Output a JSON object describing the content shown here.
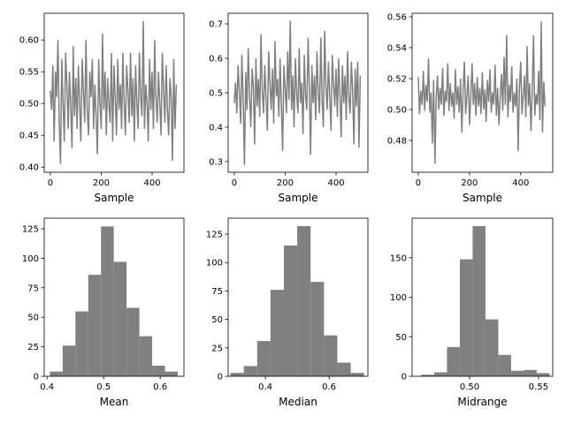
{
  "chart_data": [
    {
      "type": "line",
      "xlabel": "Sample",
      "xlim": [
        -24,
        525
      ],
      "ylim": [
        0.392,
        0.642
      ],
      "xticks": [
        "0",
        "200",
        "400"
      ],
      "xtick_values": [
        0,
        200,
        400
      ],
      "yticks": [
        "0.40",
        "0.45",
        "0.50",
        "0.55",
        "0.60"
      ],
      "ytick_values": [
        0.4,
        0.45,
        0.5,
        0.55,
        0.6
      ],
      "color": "#808080",
      "x_step": 5,
      "values": [
        0.52,
        0.49,
        0.56,
        0.44,
        0.55,
        0.51,
        0.6,
        0.47,
        0.405,
        0.57,
        0.5,
        0.44,
        0.58,
        0.53,
        0.46,
        0.55,
        0.5,
        0.43,
        0.59,
        0.48,
        0.54,
        0.46,
        0.56,
        0.5,
        0.44,
        0.57,
        0.52,
        0.47,
        0.6,
        0.49,
        0.45,
        0.55,
        0.51,
        0.57,
        0.46,
        0.53,
        0.48,
        0.42,
        0.57,
        0.5,
        0.46,
        0.61,
        0.49,
        0.55,
        0.45,
        0.54,
        0.5,
        0.47,
        0.58,
        0.44,
        0.56,
        0.51,
        0.45,
        0.57,
        0.49,
        0.53,
        0.46,
        0.58,
        0.5,
        0.45,
        0.56,
        0.52,
        0.47,
        0.58,
        0.48,
        0.54,
        0.44,
        0.56,
        0.5,
        0.46,
        0.58,
        0.51,
        0.48,
        0.63,
        0.46,
        0.53,
        0.5,
        0.44,
        0.57,
        0.49,
        0.55,
        0.46,
        0.6,
        0.51,
        0.47,
        0.55,
        0.5,
        0.45,
        0.58,
        0.52,
        0.47,
        0.56,
        0.49,
        0.45,
        0.54,
        0.51,
        0.41,
        0.57,
        0.46,
        0.53
      ]
    },
    {
      "type": "line",
      "xlabel": "Sample",
      "xlim": [
        -24,
        525
      ],
      "ylim": [
        0.269,
        0.731
      ],
      "xticks": [
        "0",
        "200",
        "400"
      ],
      "xtick_values": [
        0,
        200,
        400
      ],
      "yticks": [
        "0.3",
        "0.4",
        "0.5",
        "0.6",
        "0.7"
      ],
      "ytick_values": [
        0.3,
        0.4,
        0.5,
        0.6,
        0.7
      ],
      "color": "#808080",
      "x_step": 5,
      "values": [
        0.47,
        0.53,
        0.44,
        0.58,
        0.5,
        0.41,
        0.61,
        0.48,
        0.29,
        0.56,
        0.45,
        0.63,
        0.49,
        0.4,
        0.57,
        0.52,
        0.35,
        0.6,
        0.46,
        0.54,
        0.43,
        0.67,
        0.5,
        0.44,
        0.58,
        0.48,
        0.39,
        0.62,
        0.53,
        0.45,
        0.57,
        0.41,
        0.65,
        0.49,
        0.54,
        0.43,
        0.6,
        0.47,
        0.33,
        0.58,
        0.51,
        0.44,
        0.62,
        0.48,
        0.71,
        0.45,
        0.55,
        0.4,
        0.6,
        0.5,
        0.44,
        0.63,
        0.47,
        0.53,
        0.38,
        0.61,
        0.49,
        0.45,
        0.66,
        0.51,
        0.32,
        0.58,
        0.47,
        0.55,
        0.42,
        0.62,
        0.5,
        0.44,
        0.66,
        0.48,
        0.4,
        0.68,
        0.52,
        0.45,
        0.59,
        0.49,
        0.39,
        0.61,
        0.53,
        0.46,
        0.57,
        0.43,
        0.6,
        0.5,
        0.37,
        0.58,
        0.47,
        0.55,
        0.42,
        0.62,
        0.49,
        0.44,
        0.59,
        0.51,
        0.35,
        0.57,
        0.46,
        0.59,
        0.34,
        0.55
      ]
    },
    {
      "type": "line",
      "xlabel": "Sample",
      "xlim": [
        -24,
        525
      ],
      "ylim": [
        0.4594,
        0.5623
      ],
      "xticks": [
        "0",
        "200",
        "400"
      ],
      "xtick_values": [
        0,
        200,
        400
      ],
      "yticks": [
        "0.48",
        "0.50",
        "0.52",
        "0.54",
        "0.56"
      ],
      "ytick_values": [
        0.48,
        0.5,
        0.52,
        0.54,
        0.56
      ],
      "color": "#808080",
      "x_step": 5,
      "values": [
        0.521,
        0.497,
        0.512,
        0.503,
        0.525,
        0.499,
        0.516,
        0.505,
        0.533,
        0.498,
        0.511,
        0.478,
        0.519,
        0.465,
        0.507,
        0.522,
        0.5,
        0.514,
        0.503,
        0.527,
        0.496,
        0.512,
        0.505,
        0.53,
        0.499,
        0.517,
        0.502,
        0.511,
        0.494,
        0.526,
        0.503,
        0.515,
        0.498,
        0.52,
        0.485,
        0.512,
        0.531,
        0.497,
        0.509,
        0.522,
        0.49,
        0.508,
        0.53,
        0.503,
        0.517,
        0.496,
        0.521,
        0.502,
        0.514,
        0.497,
        0.524,
        0.5,
        0.513,
        0.492,
        0.519,
        0.505,
        0.526,
        0.498,
        0.511,
        0.503,
        0.529,
        0.496,
        0.514,
        0.49,
        0.508,
        0.523,
        0.499,
        0.534,
        0.503,
        0.548,
        0.495,
        0.516,
        0.505,
        0.528,
        0.498,
        0.511,
        0.502,
        0.52,
        0.473,
        0.513,
        0.531,
        0.497,
        0.509,
        0.522,
        0.495,
        0.541,
        0.502,
        0.517,
        0.486,
        0.512,
        0.548,
        0.496,
        0.51,
        0.503,
        0.525,
        0.493,
        0.557,
        0.485,
        0.518,
        0.502
      ]
    },
    {
      "type": "bar",
      "xlabel": "Mean",
      "xlim": [
        0.395,
        0.642
      ],
      "ylim": [
        0,
        134
      ],
      "xticks": [
        "0.4",
        "0.5",
        "0.6"
      ],
      "xtick_values": [
        0.4,
        0.5,
        0.6
      ],
      "yticks": [
        "0",
        "25",
        "50",
        "75",
        "100",
        "125"
      ],
      "ytick_values": [
        0,
        25,
        50,
        75,
        100,
        125
      ],
      "color": "#808080",
      "bin_range": [
        0.405,
        0.631
      ],
      "values": [
        4,
        26,
        55,
        86,
        127,
        97,
        58,
        34,
        9,
        4
      ]
    },
    {
      "type": "bar",
      "xlabel": "Median",
      "xlim": [
        0.283,
        0.722
      ],
      "ylim": [
        0,
        139
      ],
      "xticks": [
        "0.4",
        "0.6"
      ],
      "xtick_values": [
        0.4,
        0.6
      ],
      "yticks": [
        "0",
        "25",
        "50",
        "75",
        "100",
        "125"
      ],
      "ytick_values": [
        0,
        25,
        50,
        75,
        100,
        125
      ],
      "color": "#808080",
      "bin_range": [
        0.29,
        0.71
      ],
      "values": [
        3,
        9,
        31,
        76,
        115,
        132,
        83,
        36,
        12,
        3
      ]
    },
    {
      "type": "bar",
      "xlabel": "Midrange",
      "xlim": [
        0.4583,
        0.5603
      ],
      "ylim": [
        0,
        200
      ],
      "xticks": [
        "0.50",
        "0.55"
      ],
      "xtick_values": [
        0.5,
        0.55
      ],
      "yticks": [
        "0",
        "50",
        "100",
        "150"
      ],
      "ytick_values": [
        0,
        50,
        100,
        150
      ],
      "color": "#808080",
      "bin_range": [
        0.465,
        0.558
      ],
      "values": [
        2,
        5,
        37,
        148,
        190,
        72,
        27,
        7,
        8,
        4
      ]
    }
  ]
}
